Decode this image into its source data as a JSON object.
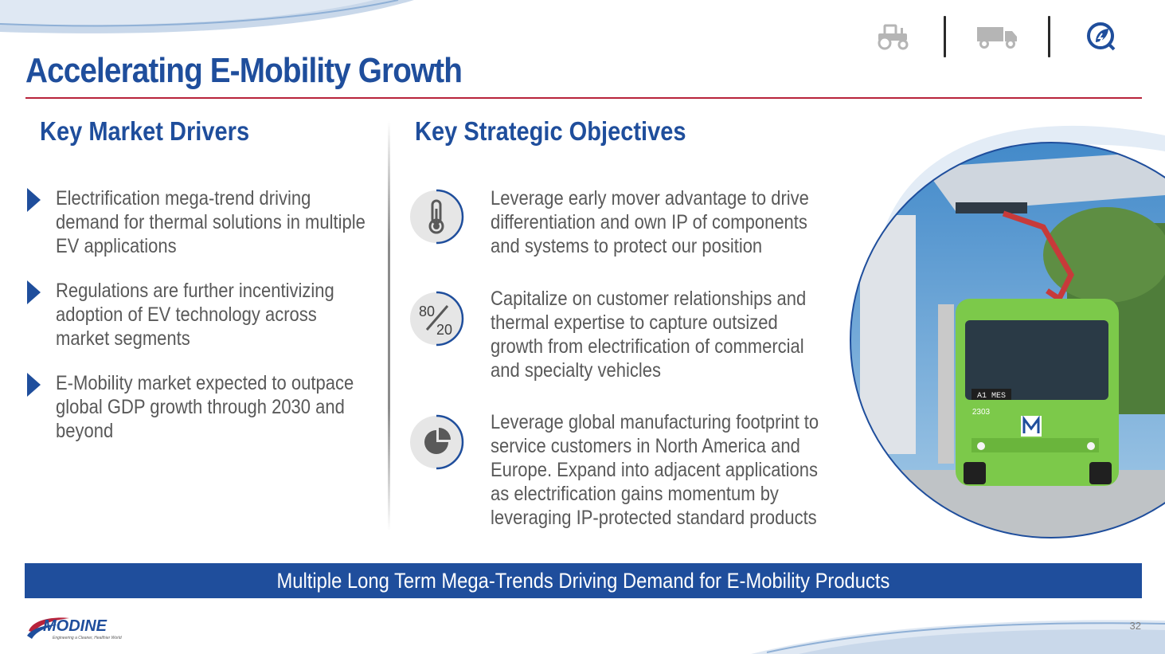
{
  "slide": {
    "title": "Accelerating E-Mobility Growth",
    "page_number": "32"
  },
  "segment_icons": [
    "tractor-icon",
    "truck-icon",
    "ev-leaf-icon"
  ],
  "drivers": {
    "heading": "Key Market Drivers",
    "items": [
      "Electrification mega-trend driving demand for thermal solutions in multiple EV applications",
      "Regulations are further incentivizing adoption of EV technology across market segments",
      "E-Mobility market expected to outpace global GDP growth through 2030 and beyond"
    ]
  },
  "objectives": {
    "heading": "Key Strategic Objectives",
    "items": [
      {
        "icon": "thermometer-icon",
        "text": "Leverage early mover advantage to drive differentiation and own IP of components and systems to protect our position"
      },
      {
        "icon": "eighty-twenty-icon",
        "icon_text_top": "80",
        "icon_text_bottom": "20",
        "text": "Capitalize on customer relationships and thermal expertise to capture outsized growth from electrification of commercial and specialty vehicles"
      },
      {
        "icon": "pie-chart-icon",
        "text": "Leverage global manufacturing footprint to service customers in North America and Europe.  Expand into adjacent applications as electrification gains momentum by leveraging IP-protected standard products"
      }
    ]
  },
  "photo": {
    "bus_route_sign": "A1 MES",
    "bus_number": "2303"
  },
  "banner": {
    "text": "Multiple Long Term Mega-Trends Driving Demand for E-Mobility Products"
  },
  "logo": {
    "name": "MODINE",
    "tagline": "Engineering a Cleaner, Healthier World"
  },
  "colors": {
    "brand_blue": "#1f4e9c",
    "accent_red": "#b8233b",
    "body_text": "#595959",
    "icon_gray": "#a6a6a6"
  }
}
